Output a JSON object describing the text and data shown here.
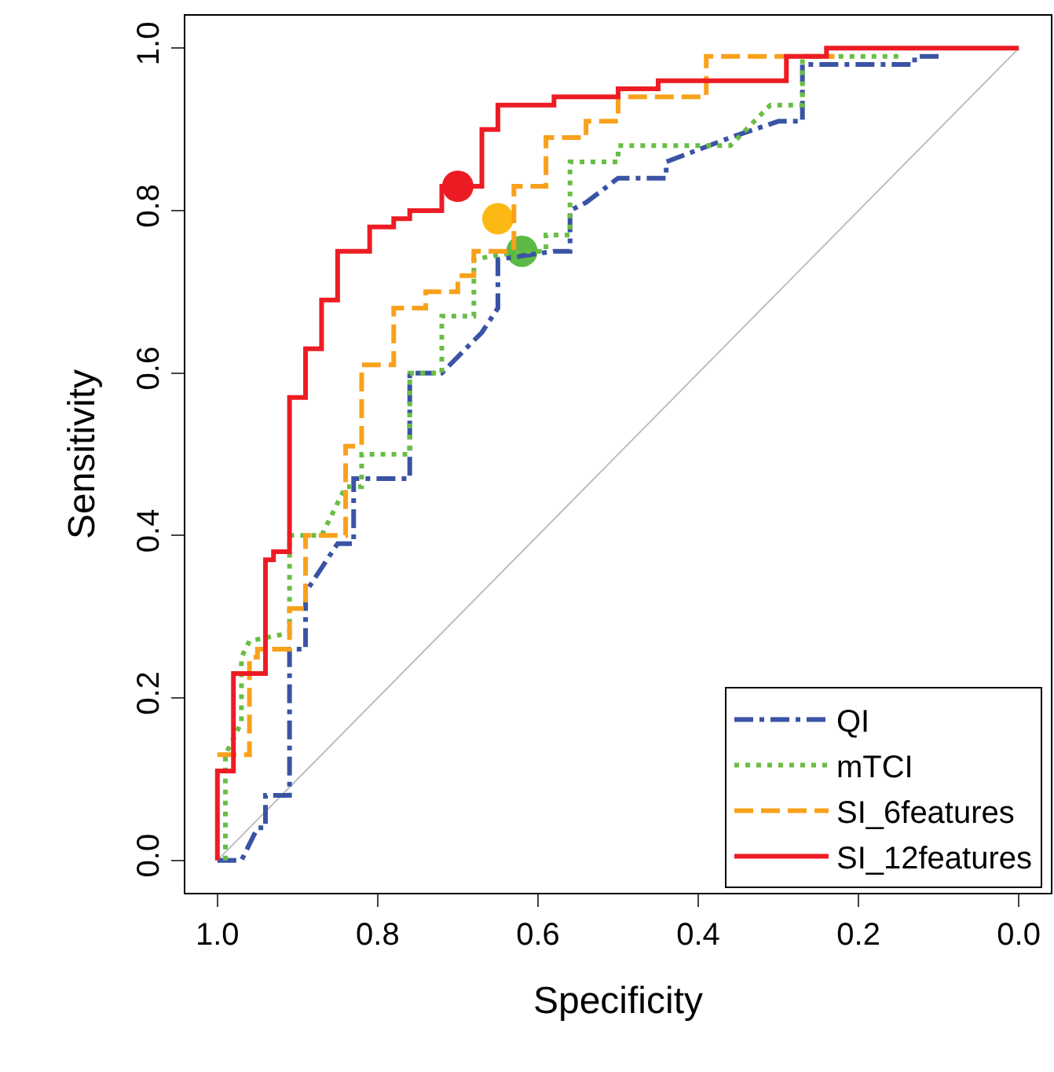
{
  "chart_data": {
    "type": "line",
    "xlabel": "Specificity",
    "ylabel": "Sensitivity",
    "xlim": [
      1.04,
      -0.04
    ],
    "ylim": [
      -0.04,
      1.04
    ],
    "xticks": [
      {
        "value": 1,
        "label": "1.0"
      },
      {
        "value": 0.8,
        "label": "0.8"
      },
      {
        "value": 0.6,
        "label": "0.6"
      },
      {
        "value": 0.4,
        "label": "0.4"
      },
      {
        "value": 0.2,
        "label": "0.2"
      },
      {
        "value": 0,
        "label": "0.0"
      }
    ],
    "yticks": [
      {
        "value": 0,
        "label": "0.0"
      },
      {
        "value": 0.2,
        "label": "0.2"
      },
      {
        "value": 0.4,
        "label": "0.4"
      },
      {
        "value": 0.6,
        "label": "0.6"
      },
      {
        "value": 0.8,
        "label": "0.8"
      },
      {
        "value": 1,
        "label": "1.0"
      }
    ],
    "grid": false,
    "legend": "bottom right",
    "series": [
      {
        "color": "#bebebe",
        "line_style": "solid",
        "x": [
          1,
          0
        ],
        "values": [
          0,
          1
        ]
      },
      {
        "name": "QI",
        "color": "#3a53a4",
        "line_style": "dashdot",
        "x": [
          1,
          0.97,
          0.95,
          0.94,
          0.94,
          0.91,
          0.91,
          0.89,
          0.89,
          0.85,
          0.83,
          0.83,
          0.76,
          0.76,
          0.72,
          0.67,
          0.65,
          0.65,
          0.58,
          0.56,
          0.56,
          0.54,
          0.5,
          0.44,
          0.44,
          0.36,
          0.3,
          0.27,
          0.27,
          0.13,
          0.13,
          0.1
        ],
        "values": [
          0,
          0,
          0.04,
          0.04,
          0.08,
          0.08,
          0.26,
          0.26,
          0.33,
          0.39,
          0.39,
          0.47,
          0.47,
          0.6,
          0.6,
          0.65,
          0.68,
          0.74,
          0.75,
          0.75,
          0.8,
          0.81,
          0.84,
          0.84,
          0.86,
          0.89,
          0.91,
          0.91,
          0.98,
          0.98,
          0.99,
          0.99
        ]
      },
      {
        "name": "mTCI",
        "color": "#6abd45",
        "line_style": "dotted",
        "x": [
          0.99,
          0.99,
          0.97,
          0.97,
          0.96,
          0.91,
          0.91,
          0.87,
          0.84,
          0.82,
          0.82,
          0.76,
          0.76,
          0.72,
          0.72,
          0.68,
          0.68,
          0.62,
          0.59,
          0.59,
          0.56,
          0.56,
          0.5,
          0.5,
          0.36,
          0.31,
          0.27,
          0.27,
          0.15
        ],
        "values": [
          0,
          0.13,
          0.17,
          0.25,
          0.27,
          0.28,
          0.4,
          0.4,
          0.46,
          0.46,
          0.5,
          0.5,
          0.6,
          0.6,
          0.67,
          0.67,
          0.74,
          0.75,
          0.75,
          0.77,
          0.77,
          0.86,
          0.86,
          0.88,
          0.88,
          0.93,
          0.93,
          0.99,
          0.99
        ]
      },
      {
        "name": "SI_6features",
        "color": "#f9a11b",
        "line_style": "dashed",
        "x": [
          1,
          0.96,
          0.96,
          0.95,
          0.95,
          0.91,
          0.91,
          0.89,
          0.89,
          0.84,
          0.84,
          0.82,
          0.82,
          0.78,
          0.78,
          0.74,
          0.74,
          0.7,
          0.7,
          0.68,
          0.68,
          0.63,
          0.63,
          0.59,
          0.59,
          0.54,
          0.54,
          0.5,
          0.5,
          0.39,
          0.39,
          0.23
        ],
        "values": [
          0.13,
          0.13,
          0.25,
          0.25,
          0.26,
          0.26,
          0.31,
          0.31,
          0.4,
          0.4,
          0.51,
          0.51,
          0.61,
          0.61,
          0.68,
          0.68,
          0.7,
          0.7,
          0.72,
          0.72,
          0.75,
          0.75,
          0.83,
          0.83,
          0.89,
          0.89,
          0.91,
          0.91,
          0.94,
          0.94,
          0.99,
          0.99
        ]
      },
      {
        "name": "SI_12features",
        "color": "#ed1c24",
        "line_style": "solid",
        "x": [
          1,
          1,
          0.98,
          0.98,
          0.94,
          0.94,
          0.93,
          0.93,
          0.91,
          0.91,
          0.89,
          0.89,
          0.87,
          0.87,
          0.85,
          0.85,
          0.81,
          0.81,
          0.78,
          0.78,
          0.76,
          0.76,
          0.72,
          0.72,
          0.67,
          0.67,
          0.65,
          0.65,
          0.58,
          0.58,
          0.5,
          0.5,
          0.45,
          0.45,
          0.29,
          0.29,
          0.24,
          0.24,
          0
        ],
        "values": [
          0,
          0.11,
          0.11,
          0.23,
          0.23,
          0.37,
          0.37,
          0.38,
          0.38,
          0.57,
          0.57,
          0.63,
          0.63,
          0.69,
          0.69,
          0.75,
          0.75,
          0.78,
          0.78,
          0.79,
          0.79,
          0.8,
          0.8,
          0.83,
          0.83,
          0.9,
          0.9,
          0.93,
          0.93,
          0.94,
          0.94,
          0.95,
          0.95,
          0.96,
          0.96,
          0.99,
          0.99,
          1,
          1
        ]
      },
      {
        "type": "scatter",
        "color": "#5cb946",
        "x": [
          0.62
        ],
        "values": [
          0.75
        ]
      },
      {
        "type": "scatter",
        "color": "#fdb913",
        "x": [
          0.65
        ],
        "values": [
          0.79
        ]
      },
      {
        "type": "scatter",
        "color": "#ed1c24",
        "x": [
          0.7
        ],
        "values": [
          0.83
        ]
      }
    ]
  }
}
